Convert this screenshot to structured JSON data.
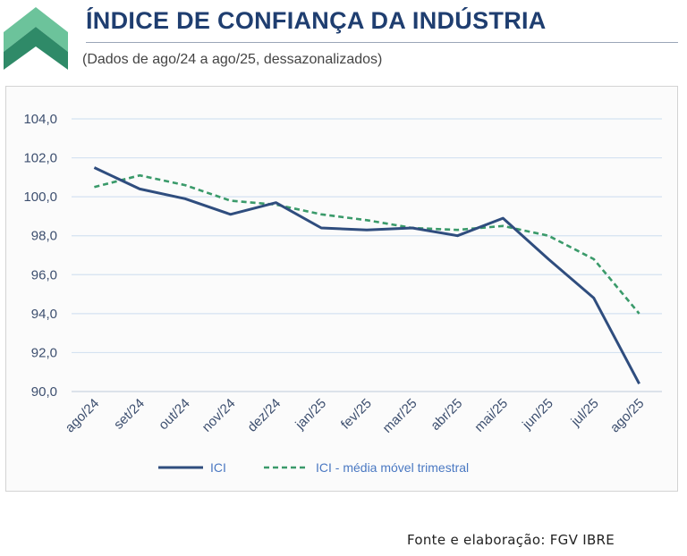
{
  "header": {
    "title": "ÍNDICE DE CONFIANÇA DA INDÚSTRIA",
    "subtitle": "(Dados de ago/24 a ago/25, dessazonalizados)",
    "logo_icon": "chevron-up-icon"
  },
  "footer": {
    "source": "Fonte e elaboração: FGV IBRE"
  },
  "colors": {
    "title": "#1f3e70",
    "ici_line": "#2f4d7e",
    "moving_avg_line": "#3a9a6a",
    "grid": "#d4e2f1",
    "logo": "#3d9a78"
  },
  "chart_data": {
    "type": "line",
    "categories": [
      "ago/24",
      "set/24",
      "out/24",
      "nov/24",
      "dez/24",
      "jan/25",
      "fev/25",
      "mar/25",
      "abr/25",
      "mai/25",
      "jun/25",
      "jul/25",
      "ago/25"
    ],
    "series": [
      {
        "name": "ICI",
        "style": "solid",
        "color": "#2f4d7e",
        "values": [
          101.5,
          100.4,
          99.9,
          99.1,
          99.7,
          98.4,
          98.3,
          98.4,
          98.0,
          98.9,
          96.8,
          94.8,
          90.4
        ]
      },
      {
        "name": "ICI - média móvel trimestral",
        "style": "dashed",
        "color": "#3a9a6a",
        "values": [
          100.5,
          101.1,
          100.6,
          99.8,
          99.6,
          99.1,
          98.8,
          98.4,
          98.3,
          98.5,
          98.0,
          96.8,
          94.0
        ]
      }
    ],
    "y_ticks": [
      "90,0",
      "92,0",
      "94,0",
      "96,0",
      "98,0",
      "100,0",
      "102,0",
      "104,0"
    ],
    "ylim": [
      90,
      104
    ],
    "grid": "horizontal",
    "legend_position": "bottom"
  }
}
